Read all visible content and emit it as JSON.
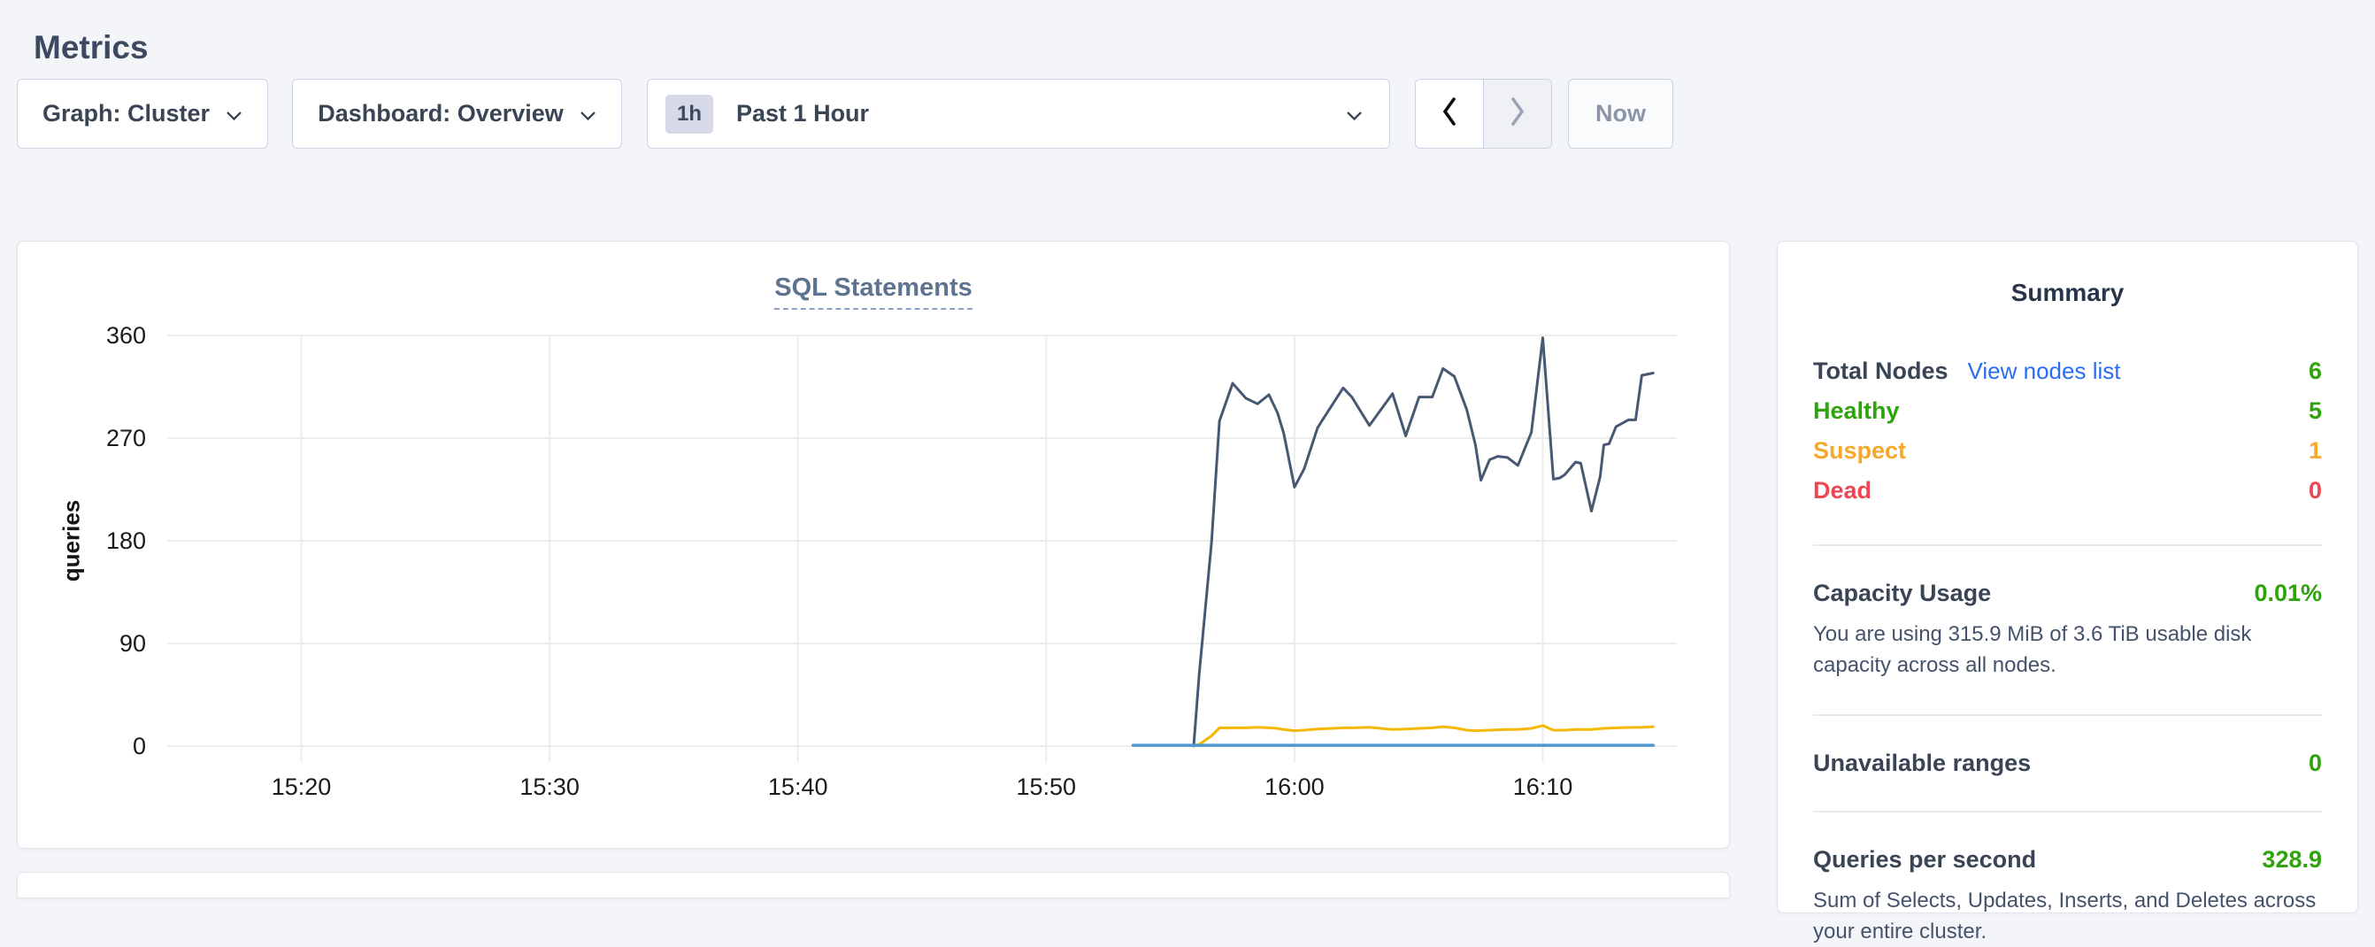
{
  "page": {
    "title": "Metrics",
    "background": "#f4f5f9"
  },
  "toolbar": {
    "graph_dropdown": {
      "label": "Graph: Cluster"
    },
    "dashboard_dropdown": {
      "label": "Dashboard: Overview"
    },
    "time_selector": {
      "badge": "1h",
      "label": "Past 1 Hour"
    },
    "now_button": {
      "label": "Now"
    }
  },
  "colors": {
    "green": "#2fa30b",
    "orange": "#f6a82c",
    "red": "#ee4653",
    "link_blue": "#2a6df4",
    "navy_series": "#475872",
    "yellow_series": "#f5b800",
    "blue_series": "#4f97d2"
  },
  "chart_data": {
    "type": "line",
    "title": "SQL Statements",
    "ylabel": "queries",
    "x_unit": "minutes after 15:00",
    "xlim": [
      14.6,
      75.4
    ],
    "ylim": [
      0,
      396
    ],
    "grid": true,
    "legend": "none (hover only)",
    "yticks": [
      0,
      90,
      180,
      270,
      360
    ],
    "xticks": [
      {
        "t": 20,
        "label": "15:20"
      },
      {
        "t": 30,
        "label": "15:30"
      },
      {
        "t": 40,
        "label": "15:40"
      },
      {
        "t": 50,
        "label": "15:50"
      },
      {
        "t": 60,
        "label": "16:00"
      },
      {
        "t": 70,
        "label": "16:10"
      }
    ],
    "series": [
      {
        "name": "navy-series",
        "color": "#475872",
        "width": 3,
        "points": [
          [
            55.94,
            0
          ],
          [
            56.16,
            62
          ],
          [
            56.66,
            179
          ],
          [
            56.98,
            285
          ],
          [
            57.51,
            318
          ],
          [
            58.04,
            305
          ],
          [
            58.51,
            300
          ],
          [
            58.97,
            308
          ],
          [
            59.32,
            292
          ],
          [
            59.57,
            274
          ],
          [
            60.0,
            227
          ],
          [
            60.39,
            243
          ],
          [
            60.93,
            279
          ],
          [
            61.1,
            285
          ],
          [
            61.96,
            314
          ],
          [
            62.31,
            306
          ],
          [
            63.02,
            281
          ],
          [
            63.95,
            309
          ],
          [
            64.48,
            272
          ],
          [
            65.02,
            306
          ],
          [
            65.55,
            306
          ],
          [
            65.98,
            331
          ],
          [
            66.44,
            324
          ],
          [
            66.94,
            295
          ],
          [
            67.29,
            264
          ],
          [
            67.51,
            233
          ],
          [
            67.86,
            251
          ],
          [
            68.18,
            254
          ],
          [
            68.58,
            253
          ],
          [
            69.0,
            246
          ],
          [
            69.54,
            275
          ],
          [
            70.0,
            358
          ],
          [
            70.43,
            234
          ],
          [
            70.68,
            235
          ],
          [
            70.89,
            238
          ],
          [
            71.32,
            249
          ],
          [
            71.53,
            248
          ],
          [
            71.96,
            206
          ],
          [
            72.31,
            236
          ],
          [
            72.46,
            264
          ],
          [
            72.67,
            265
          ],
          [
            72.95,
            280
          ],
          [
            73.45,
            286
          ],
          [
            73.74,
            286
          ],
          [
            73.99,
            325
          ],
          [
            74.45,
            327
          ]
        ]
      },
      {
        "name": "yellow-series",
        "color": "#f5b800",
        "width": 3,
        "points": [
          [
            55.94,
            0
          ],
          [
            56.2,
            2
          ],
          [
            56.66,
            9
          ],
          [
            56.98,
            16
          ],
          [
            57.51,
            16
          ],
          [
            58.04,
            16
          ],
          [
            58.51,
            16.5
          ],
          [
            58.97,
            16
          ],
          [
            59.32,
            15.5
          ],
          [
            59.57,
            14.5
          ],
          [
            60.0,
            13.5
          ],
          [
            60.39,
            14
          ],
          [
            60.93,
            15
          ],
          [
            61.96,
            16
          ],
          [
            62.31,
            16
          ],
          [
            63.02,
            16.5
          ],
          [
            63.95,
            14.5
          ],
          [
            64.48,
            15
          ],
          [
            65.02,
            15.5
          ],
          [
            65.55,
            16
          ],
          [
            65.98,
            17
          ],
          [
            66.44,
            16
          ],
          [
            66.94,
            14
          ],
          [
            67.29,
            13.5
          ],
          [
            67.86,
            14
          ],
          [
            68.58,
            14.5
          ],
          [
            69.0,
            14.5
          ],
          [
            69.54,
            15.5
          ],
          [
            70.0,
            18
          ],
          [
            70.43,
            14
          ],
          [
            70.89,
            14
          ],
          [
            71.32,
            14.5
          ],
          [
            71.96,
            14.5
          ],
          [
            72.46,
            15.5
          ],
          [
            72.95,
            16
          ],
          [
            73.45,
            16.3
          ],
          [
            73.99,
            16.5
          ],
          [
            74.45,
            17
          ]
        ]
      },
      {
        "name": "blue-series",
        "color": "#4f97d2",
        "width": 3.5,
        "points": [
          [
            53.5,
            0.7
          ],
          [
            74.45,
            0.7
          ]
        ]
      }
    ]
  },
  "summary": {
    "title": "Summary",
    "rows": [
      {
        "label": "Total Nodes",
        "link": "View nodes list",
        "value": "6",
        "label_color": "#394455",
        "value_color": "#2fa30b",
        "link_color": "#2a6df4"
      },
      {
        "label": "Healthy",
        "value": "5",
        "label_color": "#2fa30b",
        "value_color": "#2fa30b"
      },
      {
        "label": "Suspect",
        "value": "1",
        "label_color": "#f6a82c",
        "value_color": "#f6a82c"
      },
      {
        "label": "Dead",
        "value": "0",
        "label_color": "#ee4653",
        "value_color": "#ee4653"
      }
    ],
    "sections": [
      {
        "label": "Capacity Usage",
        "value": "0.01%",
        "value_color": "#2fa30b",
        "description": "You are using 315.9 MiB of 3.6 TiB usable disk capacity across all nodes."
      },
      {
        "label": "Unavailable ranges",
        "value": "0",
        "value_color": "#2fa30b",
        "description": ""
      },
      {
        "label": "Queries per second",
        "value": "328.9",
        "value_color": "#2fa30b",
        "description": "Sum of Selects, Updates, Inserts, and Deletes across your entire cluster."
      }
    ]
  }
}
